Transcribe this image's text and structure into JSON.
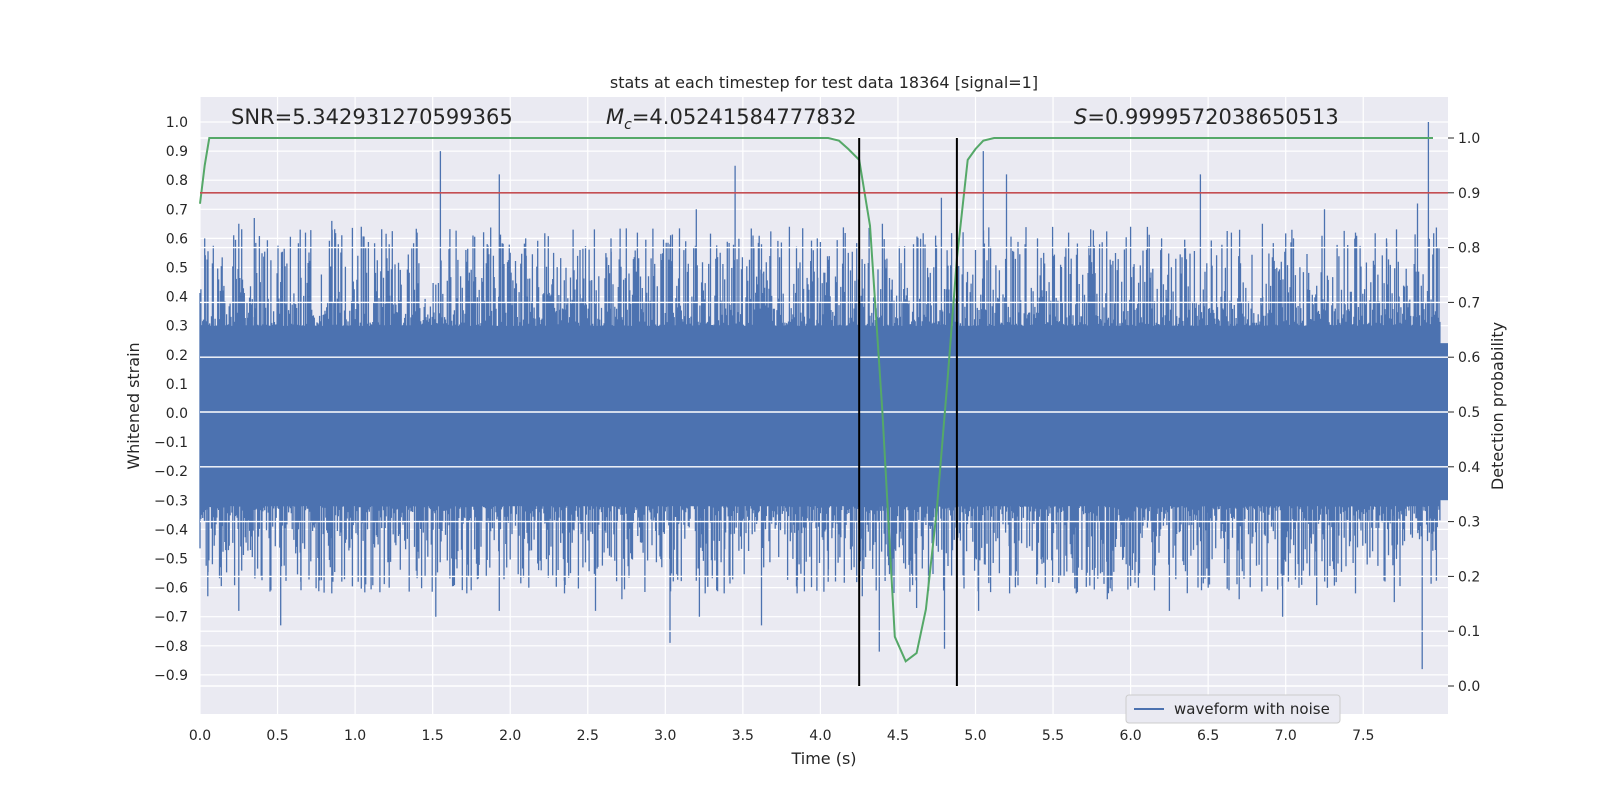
{
  "chart_data": {
    "type": "line",
    "title": "stats at each timestep for test data 18364 [signal=1]",
    "xlabel": "Time (s)",
    "ylabel": "Whitened strain",
    "y2label": "Detection probability",
    "xlim": [
      0.0,
      8.0
    ],
    "ylim": [
      -0.98,
      1.1
    ],
    "y2lim": [
      -0.05,
      1.05
    ],
    "grid": true,
    "legend_position": "lower-right",
    "x_ticks": [
      "0.0",
      "0.5",
      "1.0",
      "1.5",
      "2.0",
      "2.5",
      "3.0",
      "3.5",
      "4.0",
      "4.5",
      "5.0",
      "5.5",
      "6.0",
      "6.5",
      "7.0",
      "7.5"
    ],
    "y_ticks": [
      "1.0",
      "0.9",
      "0.8",
      "0.7",
      "0.6",
      "0.5",
      "0.4",
      "0.3",
      "0.2",
      "0.1",
      "0.0",
      "−0.1",
      "−0.2",
      "−0.3",
      "−0.4",
      "−0.5",
      "−0.6",
      "−0.7",
      "−0.8",
      "−0.9"
    ],
    "y2_ticks": [
      "1.0",
      "0.9",
      "0.8",
      "0.7",
      "0.6",
      "0.5",
      "0.4",
      "0.3",
      "0.2",
      "0.1",
      "0.0"
    ],
    "annotations": {
      "snr": "SNR=5.342931270599365",
      "mc_symbol": "M",
      "mc_sub": "c",
      "mc_value": "=4.05241584777832",
      "s_symbol": "S",
      "s_value": "=0.9999572038650513"
    },
    "threshold": {
      "value": 0.9,
      "axis": "right",
      "color": "#c44e52"
    },
    "vlines": [
      4.25,
      4.88
    ],
    "vline_color": "#000000",
    "series": [
      {
        "name": "waveform with noise",
        "axis": "left",
        "color": "#4c72b0",
        "envelope": "noise band approximately ±0.45 with spikes",
        "peaks": [
          {
            "x": 0.03,
            "y": 0.6
          },
          {
            "x": 0.25,
            "y": 0.65
          },
          {
            "x": 0.35,
            "y": 0.67
          },
          {
            "x": 0.52,
            "y": 0.45
          },
          {
            "x": 0.68,
            "y": 0.62
          },
          {
            "x": 0.85,
            "y": 0.66
          },
          {
            "x": 1.04,
            "y": 0.64
          },
          {
            "x": 1.22,
            "y": 0.58
          },
          {
            "x": 1.4,
            "y": 0.62
          },
          {
            "x": 1.55,
            "y": 0.9
          },
          {
            "x": 1.72,
            "y": 0.52
          },
          {
            "x": 1.93,
            "y": 0.82
          },
          {
            "x": 2.1,
            "y": 0.6
          },
          {
            "x": 2.28,
            "y": 0.55
          },
          {
            "x": 2.45,
            "y": 0.56
          },
          {
            "x": 2.65,
            "y": 0.6
          },
          {
            "x": 2.82,
            "y": 0.62
          },
          {
            "x": 3.03,
            "y": 0.58
          },
          {
            "x": 3.2,
            "y": 0.7
          },
          {
            "x": 3.45,
            "y": 0.85
          },
          {
            "x": 3.62,
            "y": 0.58
          },
          {
            "x": 3.8,
            "y": 0.64
          },
          {
            "x": 3.98,
            "y": 0.6
          },
          {
            "x": 4.18,
            "y": 0.55
          },
          {
            "x": 4.4,
            "y": 0.65
          },
          {
            "x": 4.6,
            "y": 0.58
          },
          {
            "x": 4.78,
            "y": 0.74
          },
          {
            "x": 5.05,
            "y": 0.9
          },
          {
            "x": 5.2,
            "y": 0.82
          },
          {
            "x": 5.4,
            "y": 0.6
          },
          {
            "x": 5.6,
            "y": 0.62
          },
          {
            "x": 5.8,
            "y": 0.58
          },
          {
            "x": 6.0,
            "y": 0.64
          },
          {
            "x": 6.2,
            "y": 0.6
          },
          {
            "x": 6.45,
            "y": 0.82
          },
          {
            "x": 6.65,
            "y": 0.62
          },
          {
            "x": 6.85,
            "y": 0.65
          },
          {
            "x": 7.05,
            "y": 0.6
          },
          {
            "x": 7.25,
            "y": 0.7
          },
          {
            "x": 7.45,
            "y": 0.62
          },
          {
            "x": 7.65,
            "y": 0.6
          },
          {
            "x": 7.85,
            "y": 0.72
          },
          {
            "x": 7.92,
            "y": 1.0
          }
        ],
        "troughs": [
          {
            "x": 0.05,
            "y": -0.63
          },
          {
            "x": 0.25,
            "y": -0.68
          },
          {
            "x": 0.52,
            "y": -0.73
          },
          {
            "x": 0.65,
            "y": -0.58
          },
          {
            "x": 0.85,
            "y": -0.62
          },
          {
            "x": 1.02,
            "y": -0.58
          },
          {
            "x": 1.22,
            "y": -0.6
          },
          {
            "x": 1.52,
            "y": -0.7
          },
          {
            "x": 1.72,
            "y": -0.62
          },
          {
            "x": 1.93,
            "y": -0.68
          },
          {
            "x": 2.12,
            "y": -0.6
          },
          {
            "x": 2.35,
            "y": -0.62
          },
          {
            "x": 2.55,
            "y": -0.68
          },
          {
            "x": 2.72,
            "y": -0.64
          },
          {
            "x": 3.03,
            "y": -0.79
          },
          {
            "x": 3.22,
            "y": -0.7
          },
          {
            "x": 3.38,
            "y": -0.62
          },
          {
            "x": 3.62,
            "y": -0.73
          },
          {
            "x": 3.85,
            "y": -0.62
          },
          {
            "x": 4.05,
            "y": -0.58
          },
          {
            "x": 4.27,
            "y": -0.63
          },
          {
            "x": 4.38,
            "y": -0.82
          },
          {
            "x": 4.62,
            "y": -0.67
          },
          {
            "x": 4.8,
            "y": -0.81
          },
          {
            "x": 5.02,
            "y": -0.68
          },
          {
            "x": 5.22,
            "y": -0.62
          },
          {
            "x": 5.45,
            "y": -0.6
          },
          {
            "x": 5.65,
            "y": -0.62
          },
          {
            "x": 5.85,
            "y": -0.64
          },
          {
            "x": 6.05,
            "y": -0.6
          },
          {
            "x": 6.25,
            "y": -0.68
          },
          {
            "x": 6.5,
            "y": -0.6
          },
          {
            "x": 6.7,
            "y": -0.64
          },
          {
            "x": 6.98,
            "y": -0.7
          },
          {
            "x": 7.2,
            "y": -0.66
          },
          {
            "x": 7.45,
            "y": -0.62
          },
          {
            "x": 7.7,
            "y": -0.65
          },
          {
            "x": 7.88,
            "y": -0.88
          }
        ]
      },
      {
        "name": "detection probability",
        "axis": "right",
        "color": "#55a868",
        "x": [
          0.0,
          0.03,
          0.06,
          0.5,
          1.0,
          1.5,
          2.0,
          2.5,
          3.0,
          3.5,
          3.9,
          4.05,
          4.12,
          4.18,
          4.25,
          4.32,
          4.4,
          4.48,
          4.55,
          4.62,
          4.68,
          4.75,
          4.82,
          4.88,
          4.95,
          5.0,
          5.05,
          5.12,
          5.3,
          6.0,
          7.0,
          7.95
        ],
        "y": [
          0.88,
          0.95,
          1.0,
          1.0,
          1.0,
          1.0,
          1.0,
          1.0,
          1.0,
          1.0,
          1.0,
          1.0,
          0.995,
          0.98,
          0.96,
          0.84,
          0.5,
          0.09,
          0.045,
          0.06,
          0.14,
          0.32,
          0.56,
          0.78,
          0.96,
          0.98,
          0.995,
          1.0,
          1.0,
          1.0,
          1.0,
          1.0
        ]
      }
    ]
  }
}
